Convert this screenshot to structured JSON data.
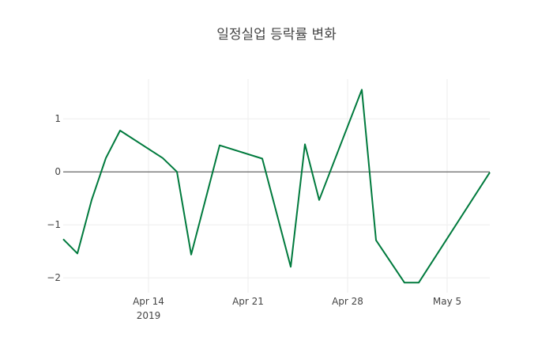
{
  "chart_data": {
    "type": "line",
    "title": "일정실업 등락률 변화",
    "xlabel": "",
    "ylabel": "",
    "x": [
      "2019-04-08",
      "2019-04-09",
      "2019-04-10",
      "2019-04-11",
      "2019-04-12",
      "2019-04-15",
      "2019-04-16",
      "2019-04-17",
      "2019-04-19",
      "2019-04-22",
      "2019-04-24",
      "2019-04-25",
      "2019-04-26",
      "2019-04-29",
      "2019-04-30",
      "2019-05-02",
      "2019-05-03",
      "2019-05-08"
    ],
    "series": [
      {
        "name": "등락률",
        "color": "#007a3d",
        "values": [
          -1.27,
          -1.54,
          -0.53,
          0.26,
          0.78,
          0.26,
          0.0,
          -1.56,
          0.5,
          0.25,
          -1.79,
          0.52,
          -0.53,
          1.55,
          -1.29,
          -2.09,
          -2.09,
          -0.01
        ]
      }
    ],
    "xlim": [
      "2019-04-08",
      "2019-05-08"
    ],
    "ylim": [
      -2.28,
      1.75
    ],
    "x_ticks": [
      {
        "date": "2019-04-14",
        "label": "Apr 14",
        "sublabel": "2019"
      },
      {
        "date": "2019-04-21",
        "label": "Apr 21"
      },
      {
        "date": "2019-04-28",
        "label": "Apr 28"
      },
      {
        "date": "2019-05-05",
        "label": "May 5"
      }
    ],
    "y_ticks": [
      {
        "value": 1,
        "label": "1"
      },
      {
        "value": 0,
        "label": "0"
      },
      {
        "value": -1,
        "label": "−1"
      },
      {
        "value": -2,
        "label": "−2"
      }
    ],
    "grid": true,
    "legend": "none"
  }
}
